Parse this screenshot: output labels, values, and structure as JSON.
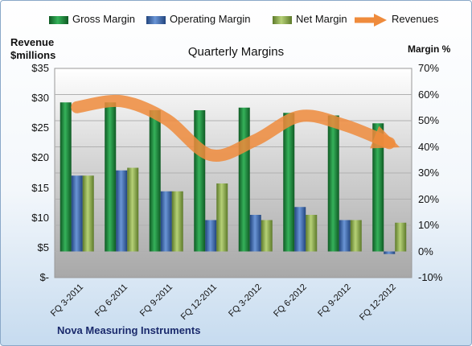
{
  "chart_data": {
    "type": "bar",
    "title": "Quarterly Margins",
    "footnote": "Nova Measuring Instruments",
    "categories": [
      "FQ 3-2011",
      "FQ 6-2011",
      "FQ 9-2011",
      "FQ 12-2011",
      "FQ 3-2012",
      "FQ 6-2012",
      "FQ 9-2012",
      "FQ 12-2012"
    ],
    "series": [
      {
        "name": "Gross Margin",
        "axis": "right",
        "values": [
          57,
          57,
          54,
          54,
          55,
          53,
          52,
          49
        ],
        "color": "#1e8a3e"
      },
      {
        "name": "Operating Margin",
        "axis": "right",
        "values": [
          29,
          31,
          23,
          12,
          14,
          17,
          12,
          -1
        ],
        "color": "#3f6fb5"
      },
      {
        "name": "Net Margin",
        "axis": "right",
        "values": [
          29,
          32,
          23,
          26,
          12,
          14,
          12,
          11
        ],
        "color": "#8fb44d"
      },
      {
        "name": "Revenues",
        "type": "line",
        "axis": "left",
        "values": [
          28.5,
          29.5,
          26.5,
          20.5,
          23,
          27,
          25.5,
          22.5
        ],
        "color": "#ef8b3c"
      }
    ],
    "left_axis": {
      "label_line1": "Revenue",
      "label_line2": "$millions",
      "ticks": [
        "$35",
        "$30",
        "$25",
        "$20",
        "$15",
        "$10",
        "$5",
        "$-"
      ],
      "range": [
        0,
        35
      ]
    },
    "right_axis": {
      "label": "Margin %",
      "ticks": [
        "70%",
        "60%",
        "50%",
        "40%",
        "30%",
        "20%",
        "10%",
        "0%",
        "-10%"
      ],
      "range": [
        -10,
        70
      ]
    },
    "grid": true,
    "legend_position": "top"
  }
}
